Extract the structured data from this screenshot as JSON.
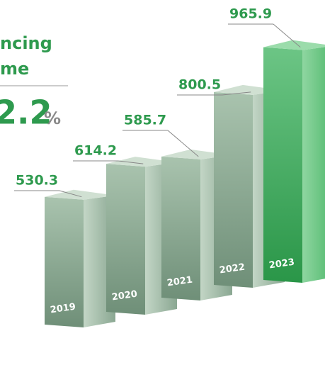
{
  "chart_data": {
    "type": "bar3d",
    "title_lines": [
      "ncing",
      "me"
    ],
    "growth_value": 2.2,
    "growth_unit": "%",
    "categories": [
      "2019",
      "2020",
      "2021",
      "2022",
      "2023"
    ],
    "values": [
      530.3,
      614.2,
      585.7,
      800.5,
      965.9
    ],
    "colors": [
      "#8fae98",
      "#8fae98",
      "#8fae98",
      "#8fae98",
      "#3fae5e"
    ]
  }
}
